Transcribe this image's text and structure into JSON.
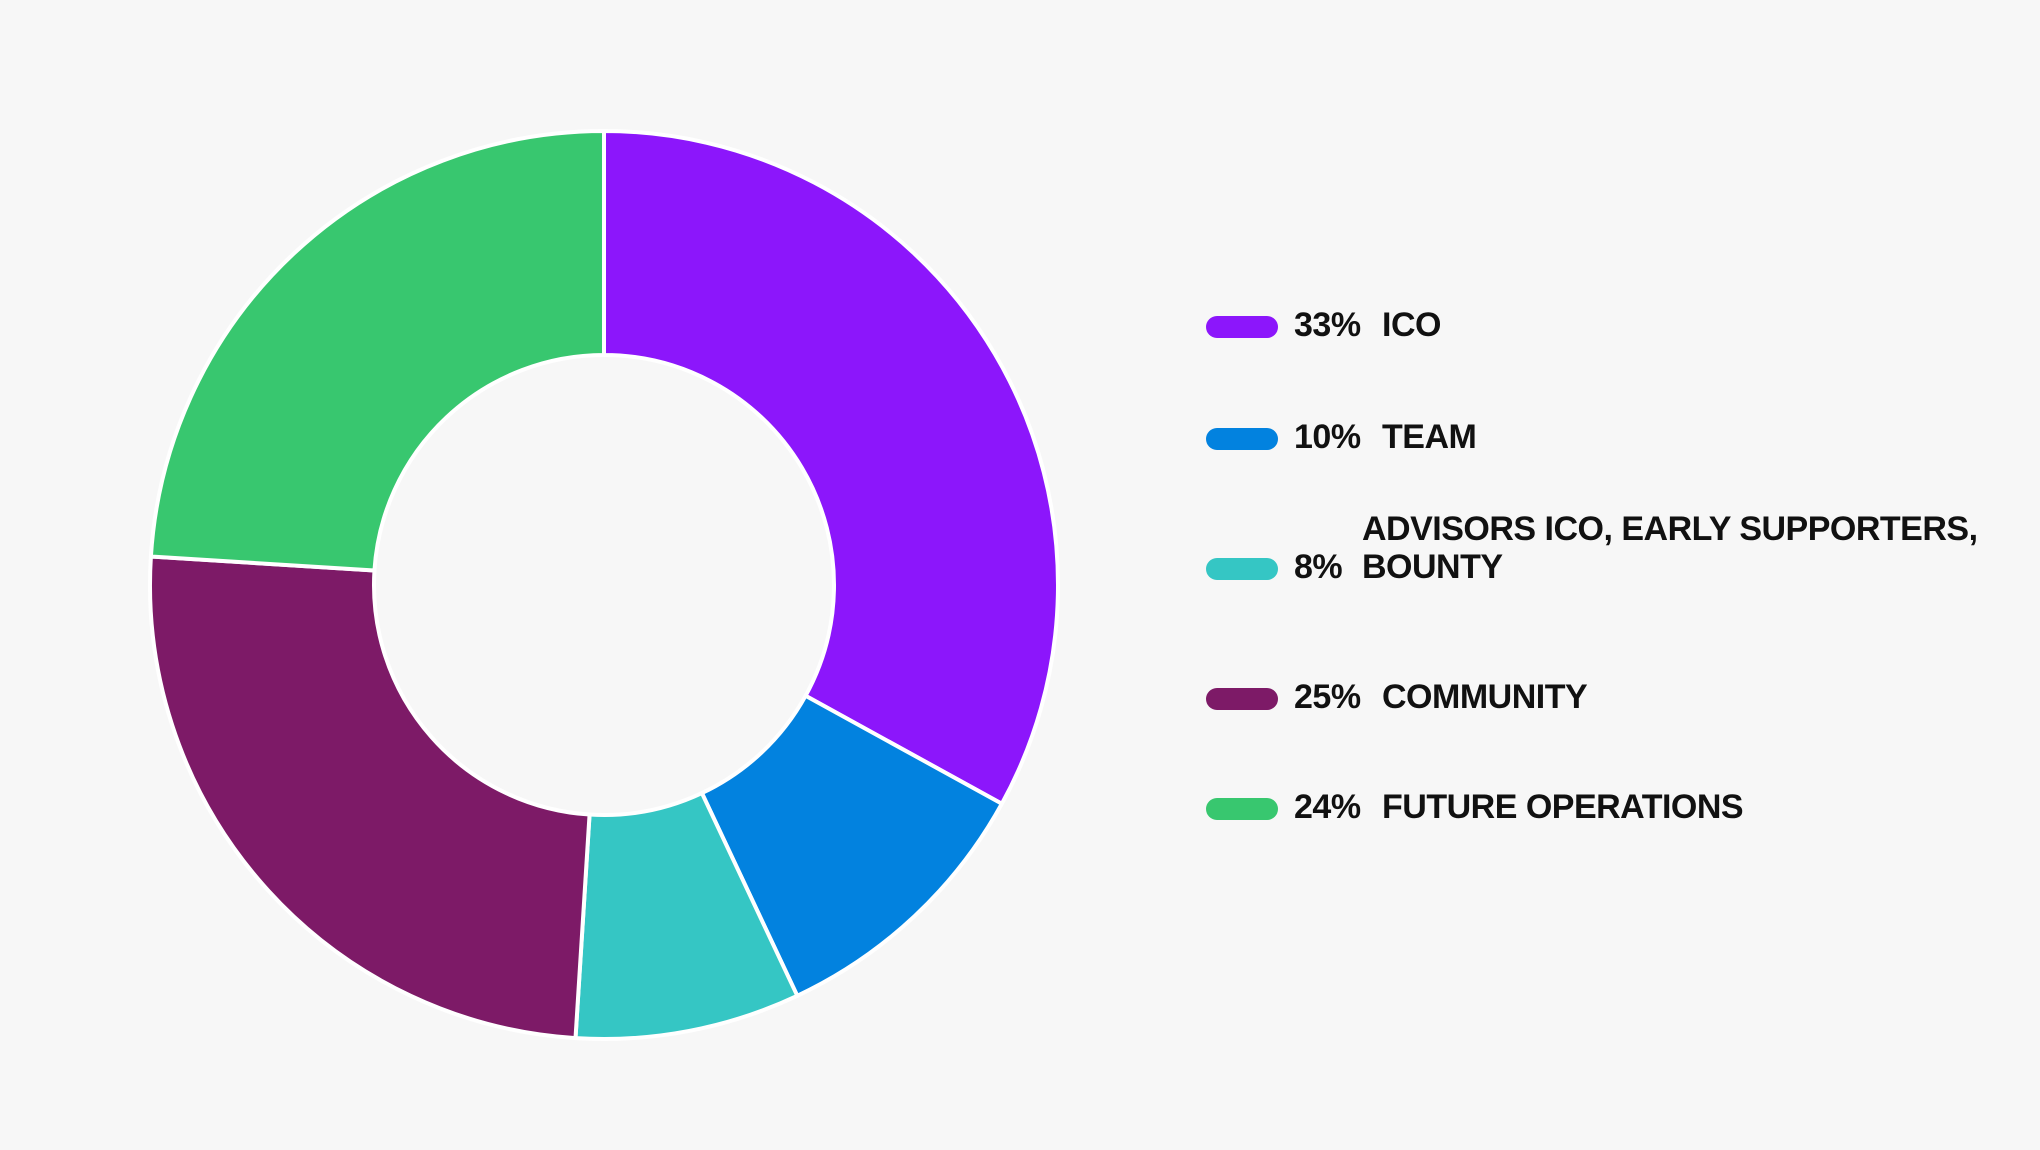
{
  "chart_data": {
    "type": "pie",
    "variant": "donut",
    "legend_position": "right",
    "categories": [
      "ICO",
      "TEAM",
      "ADVISORS ICO, EARLY SUPPORTERS, BOUNTY",
      "COMMUNITY",
      "FUTURE OPERATIONS"
    ],
    "values": [
      33,
      10,
      8,
      25,
      24
    ],
    "percent_labels": [
      "33%",
      "10%",
      "8%",
      "25%",
      "24%"
    ],
    "colors": [
      "#8c16fb",
      "#0282df",
      "#35c6c4",
      "#7d1a67",
      "#38c76f"
    ]
  }
}
